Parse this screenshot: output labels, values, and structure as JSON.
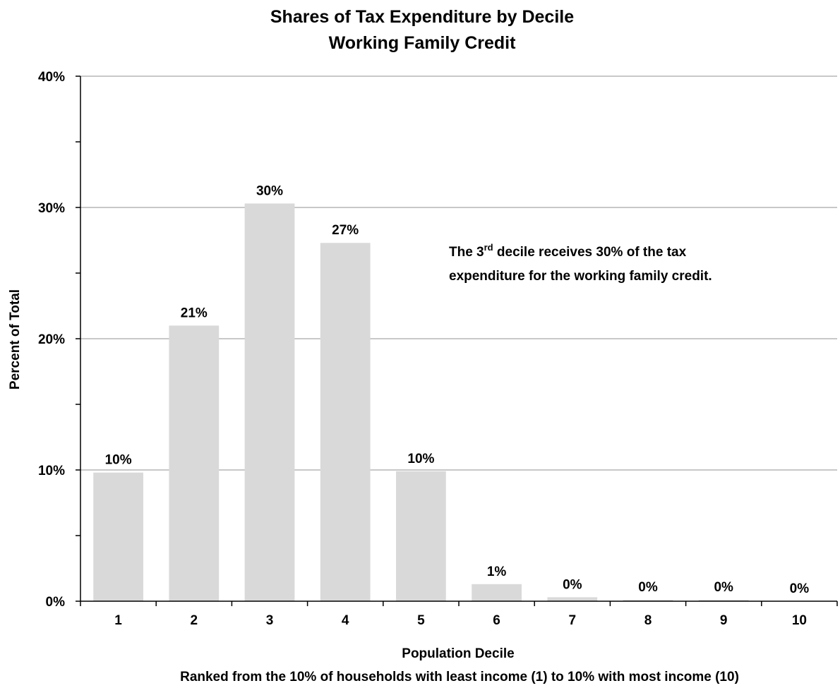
{
  "chart_data": {
    "type": "bar",
    "title": [
      "Shares of Tax Expenditure by Decile",
      "Working Family Credit"
    ],
    "xlabel": "Population Decile",
    "xlabel_sub": "Ranked from the 10% of households with least income (1) to 10% with most income (10)",
    "ylabel": "Percent of Total",
    "ylim": [
      0,
      40
    ],
    "yticks": [
      0,
      10,
      20,
      30,
      40
    ],
    "ytick_labels": [
      "0%",
      "10%",
      "20%",
      "30%",
      "40%"
    ],
    "grid": true,
    "categories": [
      "1",
      "2",
      "3",
      "4",
      "5",
      "6",
      "7",
      "8",
      "9",
      "10"
    ],
    "values": [
      9.8,
      21.0,
      30.3,
      27.3,
      9.9,
      1.3,
      0.3,
      0.1,
      0.1,
      0.0
    ],
    "data_labels": [
      "10%",
      "21%",
      "30%",
      "27%",
      "10%",
      "1%",
      "0%",
      "0%",
      "0%",
      "0%"
    ],
    "bar_color": "#d9d9d9",
    "annotation": {
      "line1_pre": "The 3",
      "line1_sup": "rd",
      "line1_post": " decile receives 30% of the tax",
      "line2": "expenditure for the working family credit."
    }
  }
}
